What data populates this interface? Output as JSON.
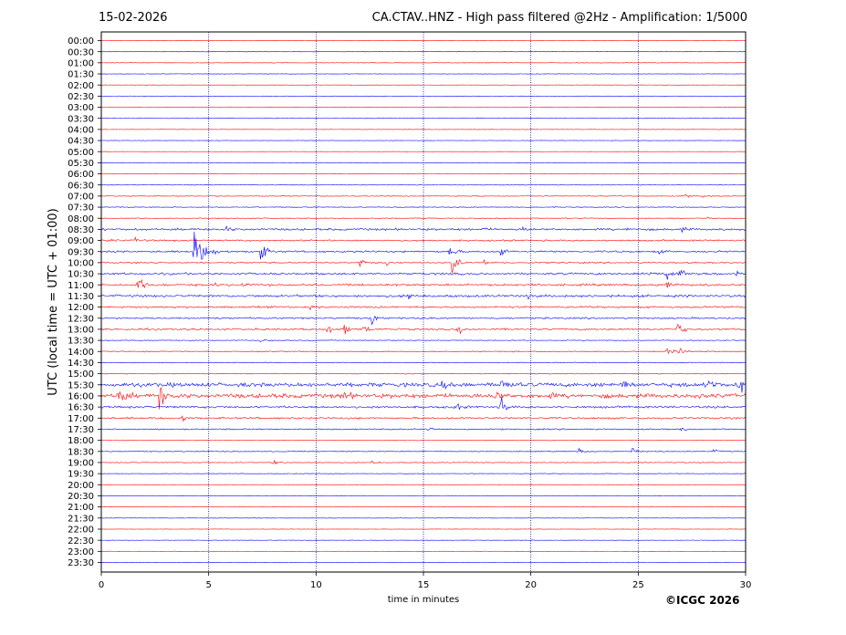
{
  "date_label": "15-02-2026",
  "title": "CA.CTAV..HNZ - High pass filtered @2Hz - Amplification: 1/5000",
  "copyright": "©ICGC 2026",
  "colors": {
    "red": "#ff0000",
    "blue": "#0000ff",
    "grid": "#000080"
  },
  "chart_data": {
    "type": "line",
    "xlabel": "time in minutes",
    "ylabel": "UTC (local time = UTC + 01:00)",
    "xlim": [
      0,
      30
    ],
    "x_ticks": [
      0,
      5,
      10,
      15,
      20,
      25,
      30
    ],
    "vertical_gridlines": [
      5,
      10,
      15,
      20,
      25
    ],
    "row_labels": [
      "00:00",
      "00:30",
      "01:00",
      "01:30",
      "02:00",
      "02:30",
      "03:00",
      "03:30",
      "04:00",
      "04:30",
      "05:00",
      "05:30",
      "06:00",
      "06:30",
      "07:00",
      "07:30",
      "08:00",
      "08:30",
      "09:00",
      "09:30",
      "10:00",
      "10:30",
      "11:00",
      "11:30",
      "12:00",
      "12:30",
      "13:00",
      "13:30",
      "14:00",
      "14:30",
      "15:00",
      "15:30",
      "16:00",
      "16:30",
      "17:00",
      "17:30",
      "18:00",
      "18:30",
      "19:00",
      "19:30",
      "20:00",
      "20:30",
      "21:00",
      "21:30",
      "22:00",
      "22:30",
      "23:00",
      "23:30"
    ],
    "trace_colors": "alternating red/blue starting with red at 00:00",
    "noise_level": [
      0.3,
      0.3,
      0.4,
      0.3,
      0.3,
      0.3,
      0.3,
      0.3,
      0.3,
      0.3,
      0.3,
      0.3,
      0.4,
      0.4,
      0.6,
      0.6,
      0.6,
      1.6,
      1.2,
      1.4,
      1.0,
      1.6,
      1.6,
      1.8,
      1.4,
      1.2,
      1.4,
      0.6,
      0.8,
      0.6,
      0.7,
      3.0,
      3.2,
      1.6,
      1.4,
      1.0,
      0.5,
      0.7,
      0.6,
      0.4,
      0.4,
      0.3,
      0.3,
      0.3,
      0.3,
      0.3,
      0.3,
      0.3
    ],
    "events": [
      {
        "row": "07:00",
        "minute": 27.2,
        "amplitude": 3
      },
      {
        "row": "07:00",
        "minute": 28.0,
        "amplitude": 2
      },
      {
        "row": "08:00",
        "minute": 28.2,
        "amplitude": 2
      },
      {
        "row": "08:30",
        "minute": 5.8,
        "amplitude": 5
      },
      {
        "row": "08:30",
        "minute": 17.8,
        "amplitude": 3
      },
      {
        "row": "08:30",
        "minute": 19.6,
        "amplitude": 3
      },
      {
        "row": "08:30",
        "minute": 24.5,
        "amplitude": 3
      },
      {
        "row": "08:30",
        "minute": 27.0,
        "amplitude": 4
      },
      {
        "row": "09:00",
        "minute": 0.3,
        "amplitude": 3
      },
      {
        "row": "09:00",
        "minute": 1.6,
        "amplitude": 4
      },
      {
        "row": "09:30",
        "minute": 4.3,
        "amplitude": 40
      },
      {
        "row": "09:30",
        "minute": 4.6,
        "amplitude": 18
      },
      {
        "row": "09:30",
        "minute": 5.2,
        "amplitude": 6
      },
      {
        "row": "09:30",
        "minute": 7.4,
        "amplitude": 22
      },
      {
        "row": "09:30",
        "minute": 16.2,
        "amplitude": 14
      },
      {
        "row": "09:30",
        "minute": 18.6,
        "amplitude": 9
      },
      {
        "row": "09:30",
        "minute": 26.0,
        "amplitude": 4
      },
      {
        "row": "10:00",
        "minute": 12.0,
        "amplitude": 9
      },
      {
        "row": "10:00",
        "minute": 13.3,
        "amplitude": 6
      },
      {
        "row": "10:00",
        "minute": 16.3,
        "amplitude": 25
      },
      {
        "row": "10:00",
        "minute": 17.8,
        "amplitude": 5
      },
      {
        "row": "10:30",
        "minute": 25.5,
        "amplitude": 7
      },
      {
        "row": "10:30",
        "minute": 26.3,
        "amplitude": 22
      },
      {
        "row": "10:30",
        "minute": 26.9,
        "amplitude": 8
      },
      {
        "row": "10:30",
        "minute": 28.2,
        "amplitude": 5
      },
      {
        "row": "10:30",
        "minute": 29.6,
        "amplitude": 4
      },
      {
        "row": "11:00",
        "minute": 1.7,
        "amplitude": 16
      },
      {
        "row": "11:00",
        "minute": 5.2,
        "amplitude": 4
      },
      {
        "row": "11:00",
        "minute": 6.6,
        "amplitude": 5
      },
      {
        "row": "11:00",
        "minute": 26.3,
        "amplitude": 8
      },
      {
        "row": "11:30",
        "minute": 14.3,
        "amplitude": 5
      },
      {
        "row": "11:30",
        "minute": 19.8,
        "amplitude": 4
      },
      {
        "row": "12:00",
        "minute": 9.7,
        "amplitude": 6
      },
      {
        "row": "12:30",
        "minute": 12.6,
        "amplitude": 10
      },
      {
        "row": "13:00",
        "minute": 10.5,
        "amplitude": 9
      },
      {
        "row": "13:00",
        "minute": 11.3,
        "amplitude": 9
      },
      {
        "row": "13:00",
        "minute": 12.2,
        "amplitude": 8
      },
      {
        "row": "13:00",
        "minute": 16.6,
        "amplitude": 9
      },
      {
        "row": "13:00",
        "minute": 26.8,
        "amplitude": 16
      },
      {
        "row": "13:30",
        "minute": 7.4,
        "amplitude": 4
      },
      {
        "row": "14:00",
        "minute": 26.3,
        "amplitude": 8
      },
      {
        "row": "14:00",
        "minute": 26.9,
        "amplitude": 6
      },
      {
        "row": "15:30",
        "minute": 15.8,
        "amplitude": 8
      },
      {
        "row": "15:30",
        "minute": 18.6,
        "amplitude": 14
      },
      {
        "row": "15:30",
        "minute": 24.2,
        "amplitude": 12
      },
      {
        "row": "15:30",
        "minute": 28.3,
        "amplitude": 14
      },
      {
        "row": "15:30",
        "minute": 29.7,
        "amplitude": 22
      },
      {
        "row": "16:00",
        "minute": 0.8,
        "amplitude": 28
      },
      {
        "row": "16:00",
        "minute": 2.7,
        "amplitude": 28
      },
      {
        "row": "16:00",
        "minute": 11.3,
        "amplitude": 9
      },
      {
        "row": "16:00",
        "minute": 18.3,
        "amplitude": 10
      },
      {
        "row": "16:00",
        "minute": 20.7,
        "amplitude": 6
      },
      {
        "row": "16:30",
        "minute": 16.4,
        "amplitude": 10
      },
      {
        "row": "16:30",
        "minute": 18.6,
        "amplitude": 18
      },
      {
        "row": "17:00",
        "minute": 3.8,
        "amplitude": 5
      },
      {
        "row": "17:30",
        "minute": 15.2,
        "amplitude": 5
      },
      {
        "row": "17:30",
        "minute": 27.0,
        "amplitude": 4
      },
      {
        "row": "18:30",
        "minute": 22.2,
        "amplitude": 5
      },
      {
        "row": "18:30",
        "minute": 24.7,
        "amplitude": 6
      },
      {
        "row": "18:30",
        "minute": 28.5,
        "amplitude": 3
      },
      {
        "row": "19:00",
        "minute": 8.0,
        "amplitude": 4
      },
      {
        "row": "19:00",
        "minute": 12.6,
        "amplitude": 3
      }
    ]
  }
}
